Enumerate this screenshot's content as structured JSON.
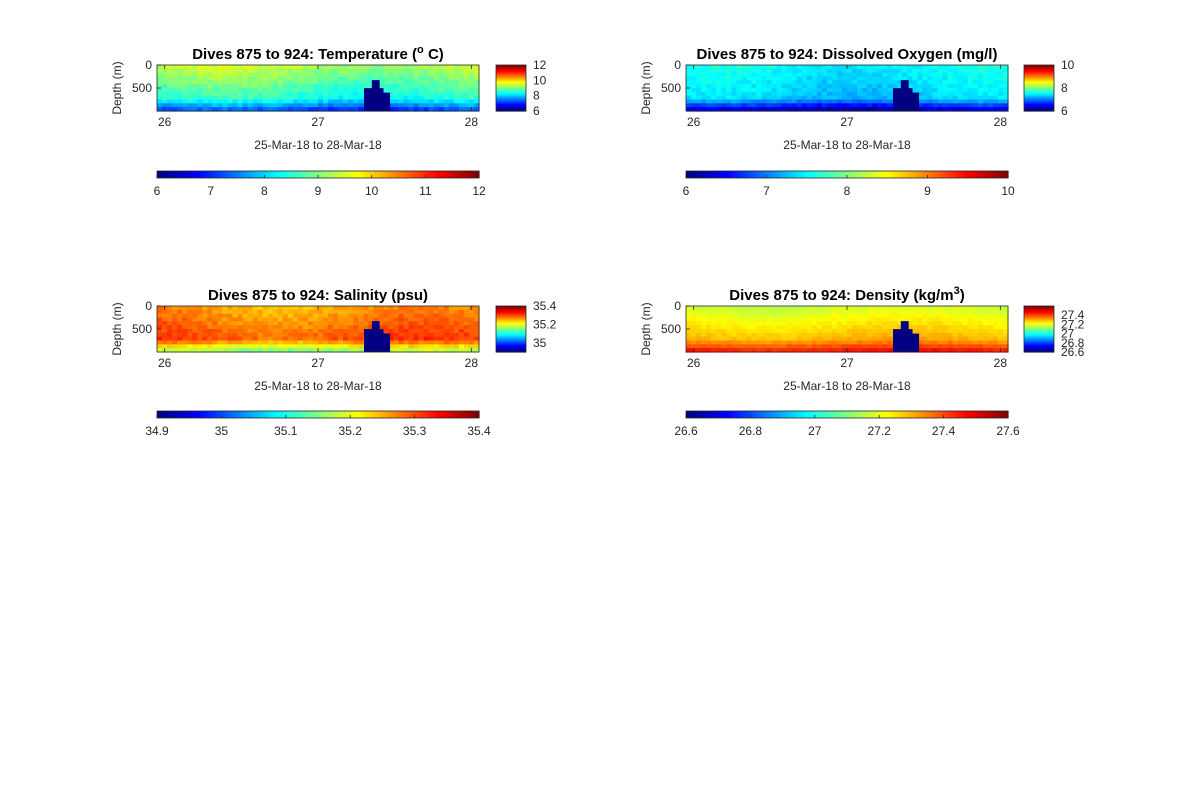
{
  "figure": {
    "background": "#ffffff"
  },
  "chart_data": [
    {
      "type": "heatmap",
      "title_main": "Dives 875 to 924: Temperature (",
      "title_sup": "o",
      "title_tail": " C)",
      "xlabel": "25-Mar-18 to 28-Mar-18",
      "ylabel": "Depth (m)",
      "xticks": [
        "26",
        "27",
        "28"
      ],
      "yticks": [
        "0",
        "500"
      ],
      "xlim": [
        25.95,
        28.05
      ],
      "ylim": [
        0,
        1000
      ],
      "clim": [
        6,
        12
      ],
      "side_cbar_ticks": [
        "12",
        "10",
        "8",
        "6"
      ],
      "side_cbar_values": [
        12,
        10,
        8,
        6
      ],
      "bottom_cbar_ticks": [
        "6",
        "7",
        "8",
        "9",
        "10",
        "11",
        "12"
      ],
      "bottom_cbar_values": [
        6,
        7,
        8,
        9,
        10,
        11,
        12
      ],
      "field": {
        "surface": 9.3,
        "deep": 8.4,
        "bottom": 7.2,
        "variability": 0.35
      },
      "gap": {
        "x_start": 27.3,
        "x_end": 27.47,
        "top_depth": 330
      }
    },
    {
      "type": "heatmap",
      "title_main": "Dives 875 to 924: Dissolved Oxygen (mg/l)",
      "title_sup": "",
      "title_tail": "",
      "xlabel": "25-Mar-18 to 28-Mar-18",
      "ylabel": "Depth (m)",
      "xticks": [
        "26",
        "27",
        "28"
      ],
      "yticks": [
        "0",
        "500"
      ],
      "xlim": [
        25.95,
        28.05
      ],
      "ylim": [
        0,
        1000
      ],
      "clim": [
        6,
        10
      ],
      "side_cbar_ticks": [
        "10",
        "8",
        "6"
      ],
      "side_cbar_values": [
        10,
        8,
        6
      ],
      "bottom_cbar_ticks": [
        "6",
        "7",
        "8",
        "9",
        "10"
      ],
      "bottom_cbar_values": [
        6,
        7,
        8,
        9,
        10
      ],
      "field": {
        "surface": 7.5,
        "deep": 7.3,
        "bottom": 6.3,
        "variability": 0.2
      },
      "gap": {
        "x_start": 27.3,
        "x_end": 27.47,
        "top_depth": 330
      }
    },
    {
      "type": "heatmap",
      "title_main": "Dives 875 to 924: Salinity (psu)",
      "title_sup": "",
      "title_tail": "",
      "xlabel": "25-Mar-18 to 28-Mar-18",
      "ylabel": "Depth (m)",
      "xticks": [
        "26",
        "27",
        "28"
      ],
      "yticks": [
        "0",
        "500"
      ],
      "xlim": [
        25.95,
        28.05
      ],
      "ylim": [
        0,
        1000
      ],
      "clim": [
        34.9,
        35.4
      ],
      "side_cbar_ticks": [
        "35.4",
        "35.2",
        "35"
      ],
      "side_cbar_values": [
        35.4,
        35.2,
        35.0
      ],
      "bottom_cbar_ticks": [
        "34.9",
        "35",
        "35.1",
        "35.2",
        "35.3",
        "35.4"
      ],
      "bottom_cbar_values": [
        34.9,
        35.0,
        35.1,
        35.2,
        35.3,
        35.4
      ],
      "field": {
        "surface": 35.26,
        "deep": 35.3,
        "bottom": 35.17,
        "variability": 0.03
      },
      "gap": {
        "x_start": 27.3,
        "x_end": 27.47,
        "top_depth": 330
      }
    },
    {
      "type": "heatmap",
      "title_main": "Dives 875 to 924: Density (kg/m",
      "title_sup": "3",
      "title_tail": ")",
      "xlabel": "25-Mar-18 to 28-Mar-18",
      "ylabel": "Depth (m)",
      "xticks": [
        "26",
        "27",
        "28"
      ],
      "yticks": [
        "0",
        "500"
      ],
      "xlim": [
        25.95,
        28.05
      ],
      "ylim": [
        0,
        1000
      ],
      "clim": [
        26.6,
        27.6
      ],
      "side_cbar_ticks": [
        "27.4",
        "27.2",
        "27",
        "26.8",
        "26.6"
      ],
      "side_cbar_values": [
        27.4,
        27.2,
        27.0,
        26.8,
        26.6
      ],
      "bottom_cbar_ticks": [
        "26.6",
        "26.8",
        "27",
        "27.2",
        "27.4",
        "27.6"
      ],
      "bottom_cbar_values": [
        26.6,
        26.8,
        27.0,
        27.2,
        27.4,
        27.6
      ],
      "field": {
        "surface": 27.18,
        "deep": 27.3,
        "bottom": 27.45,
        "variability": 0.03
      },
      "gap": {
        "x_start": 27.3,
        "x_end": 27.47,
        "top_depth": 330
      }
    }
  ]
}
